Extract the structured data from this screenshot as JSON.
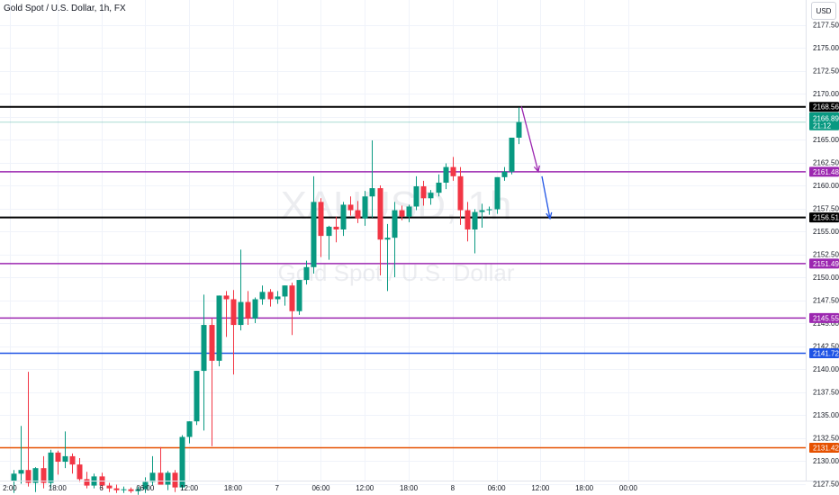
{
  "header": {
    "title": "Gold Spot / U.S. Dollar, 1h, FX",
    "currency": "USD"
  },
  "watermark": {
    "symbol": "XAUUSD, 1h",
    "name": "Gold Spot / U.S. Dollar"
  },
  "colors": {
    "up": "#089981",
    "down": "#f23645",
    "grid": "#f0f3fa",
    "axis_text": "#131722"
  },
  "chart_data": {
    "type": "candlestick",
    "symbol": "XAUUSD",
    "timeframe": "1h",
    "y_ticks": [
      "2127.50",
      "2130.00",
      "2132.50",
      "2135.00",
      "2137.50",
      "2140.00",
      "2142.50",
      "2145.00",
      "2147.50",
      "2150.00",
      "2152.50",
      "2155.00",
      "2157.50",
      "2160.00",
      "2162.50",
      "2165.00",
      "2167.50",
      "2170.00",
      "2172.50",
      "2175.00",
      "2177.50"
    ],
    "ylim": [
      2126.2,
      2180.1
    ],
    "x_ticks": [
      {
        "label": "2:00",
        "bar": -0.5
      },
      {
        "label": "18:00",
        "bar": 6
      },
      {
        "label": "6",
        "bar": 12
      },
      {
        "label": "06:00",
        "bar": 18
      },
      {
        "label": "12:00",
        "bar": 24
      },
      {
        "label": "18:00",
        "bar": 30
      },
      {
        "label": "7",
        "bar": 36
      },
      {
        "label": "06:00",
        "bar": 42
      },
      {
        "label": "12:00",
        "bar": 48
      },
      {
        "label": "18:00",
        "bar": 54
      },
      {
        "label": "8",
        "bar": 60
      },
      {
        "label": "06:00",
        "bar": 66
      },
      {
        "label": "12:00",
        "bar": 72
      },
      {
        "label": "18:00",
        "bar": 78
      },
      {
        "label": "00:00",
        "bar": 84
      }
    ],
    "candles": [
      {
        "o": 2127.8,
        "h": 2129.0,
        "l": 2126.5,
        "c": 2128.6
      },
      {
        "o": 2128.6,
        "h": 2133.8,
        "l": 2127.5,
        "c": 2129.0
      },
      {
        "o": 2129.0,
        "h": 2139.7,
        "l": 2127.2,
        "c": 2127.6
      },
      {
        "o": 2127.6,
        "h": 2129.3,
        "l": 2126.6,
        "c": 2129.2
      },
      {
        "o": 2129.2,
        "h": 2130.5,
        "l": 2127.0,
        "c": 2127.6
      },
      {
        "o": 2127.6,
        "h": 2131.2,
        "l": 2127.0,
        "c": 2130.9
      },
      {
        "o": 2130.9,
        "h": 2131.1,
        "l": 2128.5,
        "c": 2129.9
      },
      {
        "o": 2129.9,
        "h": 2133.2,
        "l": 2129.2,
        "c": 2130.5
      },
      {
        "o": 2130.5,
        "h": 2130.8,
        "l": 2128.6,
        "c": 2129.6
      },
      {
        "o": 2129.6,
        "h": 2130.3,
        "l": 2127.7,
        "c": 2128.0
      },
      {
        "o": 2128.0,
        "h": 2128.8,
        "l": 2127.0,
        "c": 2127.3
      },
      {
        "o": 2127.3,
        "h": 2128.6,
        "l": 2127.0,
        "c": 2128.3
      },
      {
        "o": 2128.3,
        "h": 2128.7,
        "l": 2126.9,
        "c": 2127.3
      },
      {
        "o": 2127.3,
        "h": 2127.6,
        "l": 2126.6,
        "c": 2127.0
      },
      {
        "o": 2127.0,
        "h": 2127.4,
        "l": 2126.5,
        "c": 2126.8
      },
      {
        "o": 2126.8,
        "h": 2127.2,
        "l": 2126.5,
        "c": 2126.9
      },
      {
        "o": 2126.9,
        "h": 2127.1,
        "l": 2126.5,
        "c": 2126.7
      },
      {
        "o": 2126.7,
        "h": 2127.2,
        "l": 2126.3,
        "c": 2126.9
      },
      {
        "o": 2126.9,
        "h": 2128.2,
        "l": 2126.5,
        "c": 2127.7
      },
      {
        "o": 2127.7,
        "h": 2130.5,
        "l": 2127.3,
        "c": 2128.7
      },
      {
        "o": 2128.7,
        "h": 2131.5,
        "l": 2127.6,
        "c": 2127.4
      },
      {
        "o": 2127.4,
        "h": 2128.9,
        "l": 2126.8,
        "c": 2128.7
      },
      {
        "o": 2128.7,
        "h": 2129.0,
        "l": 2126.6,
        "c": 2127.1
      },
      {
        "o": 2127.1,
        "h": 2132.8,
        "l": 2126.8,
        "c": 2132.6
      },
      {
        "o": 2132.6,
        "h": 2134.3,
        "l": 2131.9,
        "c": 2134.3
      },
      {
        "o": 2134.3,
        "h": 2139.8,
        "l": 2133.9,
        "c": 2139.8
      },
      {
        "o": 2139.8,
        "h": 2148.1,
        "l": 2133.3,
        "c": 2144.8
      },
      {
        "o": 2144.8,
        "h": 2145.5,
        "l": 2131.6,
        "c": 2140.9
      },
      {
        "o": 2140.9,
        "h": 2148.0,
        "l": 2140.3,
        "c": 2148.0
      },
      {
        "o": 2148.0,
        "h": 2148.5,
        "l": 2143.5,
        "c": 2147.6
      },
      {
        "o": 2147.6,
        "h": 2148.6,
        "l": 2139.4,
        "c": 2144.8
      },
      {
        "o": 2144.8,
        "h": 2153.0,
        "l": 2144.2,
        "c": 2147.3
      },
      {
        "o": 2147.3,
        "h": 2148.5,
        "l": 2144.8,
        "c": 2145.5
      },
      {
        "o": 2145.5,
        "h": 2147.8,
        "l": 2145.0,
        "c": 2147.6
      },
      {
        "o": 2147.6,
        "h": 2149.1,
        "l": 2147.0,
        "c": 2148.4
      },
      {
        "o": 2148.4,
        "h": 2148.7,
        "l": 2146.8,
        "c": 2147.6
      },
      {
        "o": 2147.6,
        "h": 2148.5,
        "l": 2147.1,
        "c": 2147.9
      },
      {
        "o": 2147.9,
        "h": 2149.1,
        "l": 2146.9,
        "c": 2149.1
      },
      {
        "o": 2149.1,
        "h": 2149.4,
        "l": 2143.7,
        "c": 2146.3
      },
      {
        "o": 2146.3,
        "h": 2149.7,
        "l": 2145.9,
        "c": 2149.7
      },
      {
        "o": 2149.7,
        "h": 2151.8,
        "l": 2149.2,
        "c": 2151.1
      },
      {
        "o": 2151.1,
        "h": 2161.0,
        "l": 2150.4,
        "c": 2158.2
      },
      {
        "o": 2158.2,
        "h": 2158.6,
        "l": 2152.2,
        "c": 2154.5
      },
      {
        "o": 2154.5,
        "h": 2155.6,
        "l": 2151.9,
        "c": 2155.5
      },
      {
        "o": 2155.5,
        "h": 2156.6,
        "l": 2153.8,
        "c": 2155.2
      },
      {
        "o": 2155.2,
        "h": 2158.2,
        "l": 2154.5,
        "c": 2157.9
      },
      {
        "o": 2157.9,
        "h": 2158.8,
        "l": 2156.7,
        "c": 2157.3
      },
      {
        "o": 2157.3,
        "h": 2158.3,
        "l": 2155.9,
        "c": 2156.4
      },
      {
        "o": 2156.4,
        "h": 2159.4,
        "l": 2155.6,
        "c": 2158.8
      },
      {
        "o": 2158.8,
        "h": 2164.9,
        "l": 2156.5,
        "c": 2159.7
      },
      {
        "o": 2159.7,
        "h": 2160.0,
        "l": 2150.2,
        "c": 2154.1
      },
      {
        "o": 2154.1,
        "h": 2155.8,
        "l": 2148.5,
        "c": 2154.3
      },
      {
        "o": 2154.3,
        "h": 2158.2,
        "l": 2150.0,
        "c": 2157.3
      },
      {
        "o": 2157.3,
        "h": 2157.8,
        "l": 2156.2,
        "c": 2156.6
      },
      {
        "o": 2156.6,
        "h": 2157.9,
        "l": 2156.0,
        "c": 2157.7
      },
      {
        "o": 2157.7,
        "h": 2161.0,
        "l": 2157.3,
        "c": 2159.9
      },
      {
        "o": 2159.9,
        "h": 2160.5,
        "l": 2157.8,
        "c": 2158.6
      },
      {
        "o": 2158.6,
        "h": 2159.5,
        "l": 2157.9,
        "c": 2159.2
      },
      {
        "o": 2159.2,
        "h": 2161.2,
        "l": 2158.8,
        "c": 2160.3
      },
      {
        "o": 2160.3,
        "h": 2162.4,
        "l": 2159.6,
        "c": 2162.0
      },
      {
        "o": 2162.0,
        "h": 2163.1,
        "l": 2160.5,
        "c": 2161.0
      },
      {
        "o": 2161.0,
        "h": 2162.0,
        "l": 2155.7,
        "c": 2157.3
      },
      {
        "o": 2157.3,
        "h": 2158.2,
        "l": 2153.9,
        "c": 2155.2
      },
      {
        "o": 2155.2,
        "h": 2157.4,
        "l": 2152.6,
        "c": 2157.1
      },
      {
        "o": 2157.1,
        "h": 2158.0,
        "l": 2155.4,
        "c": 2157.3
      },
      {
        "o": 2157.3,
        "h": 2157.7,
        "l": 2156.8,
        "c": 2157.4
      },
      {
        "o": 2157.4,
        "h": 2160.9,
        "l": 2156.9,
        "c": 2160.9
      },
      {
        "o": 2160.9,
        "h": 2162.0,
        "l": 2160.5,
        "c": 2161.5
      },
      {
        "o": 2161.5,
        "h": 2165.2,
        "l": 2161.2,
        "c": 2165.2
      },
      {
        "o": 2165.2,
        "h": 2168.5,
        "l": 2164.5,
        "c": 2166.9
      }
    ],
    "horizontal_lines": [
      {
        "price": 2168.56,
        "label": "2168.56",
        "color": "#000000",
        "width": 2
      },
      {
        "price": 2161.48,
        "label": "2161.48",
        "color": "#9c27b0",
        "width": 1.5
      },
      {
        "price": 2156.51,
        "label": "2156.51",
        "color": "#000000",
        "width": 2
      },
      {
        "price": 2151.49,
        "label": "2151.49",
        "color": "#9c27b0",
        "width": 1.5
      },
      {
        "price": 2145.55,
        "label": "2145.55",
        "color": "#9c27b0",
        "width": 1.5
      },
      {
        "price": 2141.72,
        "label": "2141.72",
        "color": "#1e53e5",
        "width": 1.5
      },
      {
        "price": 2131.42,
        "label": "2131.42",
        "color": "#e65100",
        "width": 1.5
      }
    ],
    "current_price": {
      "price": 2166.89,
      "label": "2166.89",
      "countdown": "21:12",
      "color": "#089981"
    },
    "projection": [
      {
        "color": "#9c27b0",
        "points": [
          {
            "bar": 69.4,
            "price": 2168.6
          },
          {
            "bar": 71.7,
            "price": 2161.5
          }
        ]
      },
      {
        "color": "#1e53e5",
        "points": [
          {
            "bar": 72.2,
            "price": 2161.0
          },
          {
            "bar": 73.3,
            "price": 2156.4
          }
        ]
      }
    ]
  }
}
